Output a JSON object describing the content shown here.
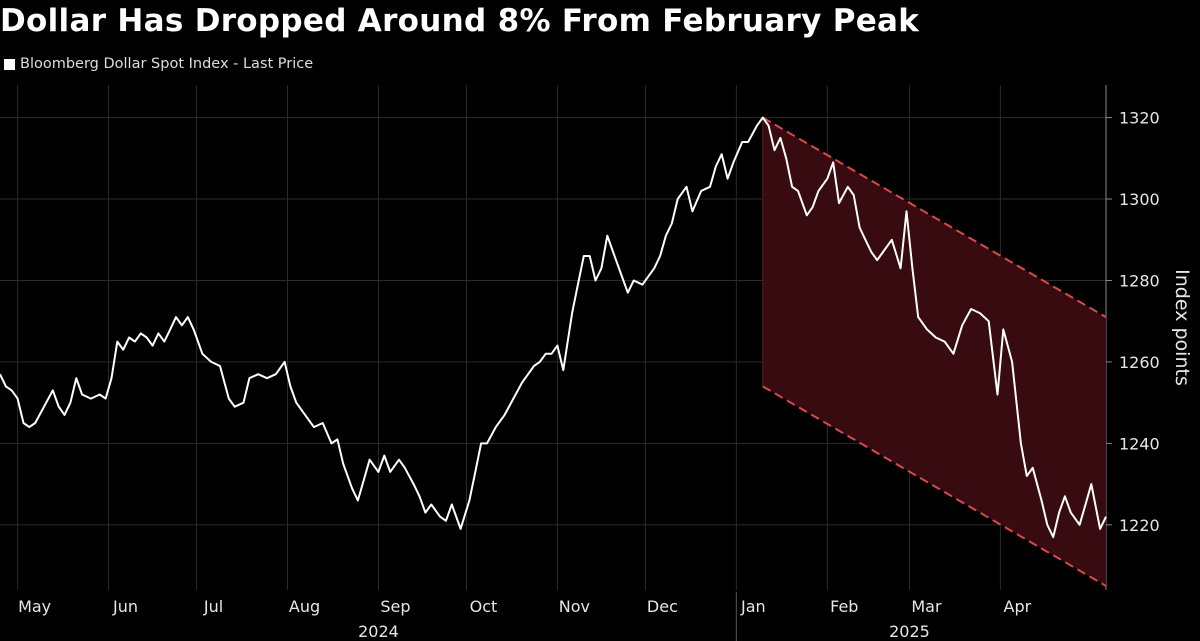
{
  "title": "Dollar Has Dropped Around 8% From February Peak",
  "legend": "Bloomberg Dollar Spot Index - Last Price",
  "chart_data": {
    "type": "line",
    "title": "Dollar Has Dropped Around 8% From February Peak",
    "ylabel": "Index points",
    "ylim": [
      1204,
      1328
    ],
    "yticks": [
      1220,
      1240,
      1260,
      1280,
      1300,
      1320
    ],
    "xlim": [
      "2024-04-25",
      "2025-05-07"
    ],
    "month_ticks": [
      {
        "date": "2024-05-01",
        "label": "May"
      },
      {
        "date": "2024-06-01",
        "label": "Jun"
      },
      {
        "date": "2024-07-01",
        "label": "Jul"
      },
      {
        "date": "2024-08-01",
        "label": "Aug"
      },
      {
        "date": "2024-09-01",
        "label": "Sep"
      },
      {
        "date": "2024-10-01",
        "label": "Oct"
      },
      {
        "date": "2024-11-01",
        "label": "Nov"
      },
      {
        "date": "2024-12-01",
        "label": "Dec"
      },
      {
        "date": "2025-01-01",
        "label": "Jan"
      },
      {
        "date": "2025-02-01",
        "label": "Feb"
      },
      {
        "date": "2025-03-01",
        "label": "Mar"
      },
      {
        "date": "2025-04-01",
        "label": "Apr"
      }
    ],
    "year_labels": [
      {
        "date": "2024-09-01",
        "label": "2024"
      },
      {
        "date": "2025-03-01",
        "label": "2025"
      }
    ],
    "year_separator": "2025-01-01",
    "grid": true,
    "legend_position": "top-left",
    "series": [
      {
        "name": "Bloomberg Dollar Spot Index - Last Price",
        "color": "#ffffff",
        "points": [
          [
            "2024-04-25",
            1257
          ],
          [
            "2024-04-27",
            1254
          ],
          [
            "2024-04-29",
            1253
          ],
          [
            "2024-05-01",
            1251
          ],
          [
            "2024-05-03",
            1245
          ],
          [
            "2024-05-05",
            1244
          ],
          [
            "2024-05-07",
            1245
          ],
          [
            "2024-05-10",
            1249
          ],
          [
            "2024-05-13",
            1253
          ],
          [
            "2024-05-15",
            1249
          ],
          [
            "2024-05-17",
            1247
          ],
          [
            "2024-05-19",
            1250
          ],
          [
            "2024-05-21",
            1256
          ],
          [
            "2024-05-23",
            1252
          ],
          [
            "2024-05-26",
            1251
          ],
          [
            "2024-05-29",
            1252
          ],
          [
            "2024-05-31",
            1251
          ],
          [
            "2024-06-02",
            1256
          ],
          [
            "2024-06-04",
            1265
          ],
          [
            "2024-06-06",
            1263
          ],
          [
            "2024-06-08",
            1266
          ],
          [
            "2024-06-10",
            1265
          ],
          [
            "2024-06-12",
            1267
          ],
          [
            "2024-06-14",
            1266
          ],
          [
            "2024-06-16",
            1264
          ],
          [
            "2024-06-18",
            1267
          ],
          [
            "2024-06-20",
            1265
          ],
          [
            "2024-06-22",
            1268
          ],
          [
            "2024-06-24",
            1271
          ],
          [
            "2024-06-26",
            1269
          ],
          [
            "2024-06-28",
            1271
          ],
          [
            "2024-06-30",
            1268
          ],
          [
            "2024-07-03",
            1262
          ],
          [
            "2024-07-06",
            1260
          ],
          [
            "2024-07-09",
            1259
          ],
          [
            "2024-07-12",
            1251
          ],
          [
            "2024-07-14",
            1249
          ],
          [
            "2024-07-17",
            1250
          ],
          [
            "2024-07-19",
            1256
          ],
          [
            "2024-07-22",
            1257
          ],
          [
            "2024-07-25",
            1256
          ],
          [
            "2024-07-28",
            1257
          ],
          [
            "2024-07-31",
            1260
          ],
          [
            "2024-08-02",
            1254
          ],
          [
            "2024-08-04",
            1250
          ],
          [
            "2024-08-07",
            1247
          ],
          [
            "2024-08-10",
            1244
          ],
          [
            "2024-08-13",
            1245
          ],
          [
            "2024-08-16",
            1240
          ],
          [
            "2024-08-18",
            1241
          ],
          [
            "2024-08-20",
            1235
          ],
          [
            "2024-08-23",
            1229
          ],
          [
            "2024-08-25",
            1226
          ],
          [
            "2024-08-27",
            1231
          ],
          [
            "2024-08-29",
            1236
          ],
          [
            "2024-09-01",
            1233
          ],
          [
            "2024-09-03",
            1237
          ],
          [
            "2024-09-05",
            1233
          ],
          [
            "2024-09-08",
            1236
          ],
          [
            "2024-09-10",
            1234
          ],
          [
            "2024-09-13",
            1230
          ],
          [
            "2024-09-15",
            1227
          ],
          [
            "2024-09-17",
            1223
          ],
          [
            "2024-09-19",
            1225
          ],
          [
            "2024-09-22",
            1222
          ],
          [
            "2024-09-24",
            1221
          ],
          [
            "2024-09-26",
            1225
          ],
          [
            "2024-09-29",
            1219
          ],
          [
            "2024-10-02",
            1226
          ],
          [
            "2024-10-04",
            1233
          ],
          [
            "2024-10-06",
            1240
          ],
          [
            "2024-10-08",
            1240
          ],
          [
            "2024-10-11",
            1244
          ],
          [
            "2024-10-14",
            1247
          ],
          [
            "2024-10-17",
            1251
          ],
          [
            "2024-10-20",
            1255
          ],
          [
            "2024-10-22",
            1257
          ],
          [
            "2024-10-24",
            1259
          ],
          [
            "2024-10-26",
            1260
          ],
          [
            "2024-10-28",
            1262
          ],
          [
            "2024-10-30",
            1262
          ],
          [
            "2024-11-01",
            1264
          ],
          [
            "2024-11-03",
            1258
          ],
          [
            "2024-11-06",
            1272
          ],
          [
            "2024-11-08",
            1279
          ],
          [
            "2024-11-10",
            1286
          ],
          [
            "2024-11-12",
            1286
          ],
          [
            "2024-11-14",
            1280
          ],
          [
            "2024-11-16",
            1283
          ],
          [
            "2024-11-18",
            1291
          ],
          [
            "2024-11-20",
            1287
          ],
          [
            "2024-11-23",
            1281
          ],
          [
            "2024-11-25",
            1277
          ],
          [
            "2024-11-27",
            1280
          ],
          [
            "2024-11-30",
            1279
          ],
          [
            "2024-12-02",
            1281
          ],
          [
            "2024-12-04",
            1283
          ],
          [
            "2024-12-06",
            1286
          ],
          [
            "2024-12-08",
            1291
          ],
          [
            "2024-12-10",
            1294
          ],
          [
            "2024-12-12",
            1300
          ],
          [
            "2024-12-15",
            1303
          ],
          [
            "2024-12-17",
            1297
          ],
          [
            "2024-12-20",
            1302
          ],
          [
            "2024-12-23",
            1303
          ],
          [
            "2024-12-25",
            1308
          ],
          [
            "2024-12-27",
            1311
          ],
          [
            "2024-12-29",
            1305
          ],
          [
            "2024-12-31",
            1309
          ],
          [
            "2025-01-03",
            1314
          ],
          [
            "2025-01-05",
            1314
          ],
          [
            "2025-01-08",
            1318
          ],
          [
            "2025-01-10",
            1320
          ],
          [
            "2025-01-12",
            1318
          ],
          [
            "2025-01-14",
            1312
          ],
          [
            "2025-01-16",
            1315
          ],
          [
            "2025-01-18",
            1310
          ],
          [
            "2025-01-20",
            1303
          ],
          [
            "2025-01-22",
            1302
          ],
          [
            "2025-01-25",
            1296
          ],
          [
            "2025-01-27",
            1298
          ],
          [
            "2025-01-29",
            1302
          ],
          [
            "2025-02-01",
            1305
          ],
          [
            "2025-02-03",
            1309
          ],
          [
            "2025-02-05",
            1299
          ],
          [
            "2025-02-08",
            1303
          ],
          [
            "2025-02-10",
            1301
          ],
          [
            "2025-02-12",
            1293
          ],
          [
            "2025-02-14",
            1290
          ],
          [
            "2025-02-16",
            1287
          ],
          [
            "2025-02-18",
            1285
          ],
          [
            "2025-02-20",
            1287
          ],
          [
            "2025-02-23",
            1290
          ],
          [
            "2025-02-26",
            1283
          ],
          [
            "2025-02-28",
            1297
          ],
          [
            "2025-03-02",
            1283
          ],
          [
            "2025-03-04",
            1271
          ],
          [
            "2025-03-07",
            1268
          ],
          [
            "2025-03-10",
            1266
          ],
          [
            "2025-03-13",
            1265
          ],
          [
            "2025-03-16",
            1262
          ],
          [
            "2025-03-19",
            1269
          ],
          [
            "2025-03-22",
            1273
          ],
          [
            "2025-03-25",
            1272
          ],
          [
            "2025-03-28",
            1270
          ],
          [
            "2025-03-31",
            1252
          ],
          [
            "2025-04-02",
            1268
          ],
          [
            "2025-04-05",
            1260
          ],
          [
            "2025-04-08",
            1240
          ],
          [
            "2025-04-10",
            1232
          ],
          [
            "2025-04-12",
            1234
          ],
          [
            "2025-04-15",
            1226
          ],
          [
            "2025-04-17",
            1220
          ],
          [
            "2025-04-19",
            1217
          ],
          [
            "2025-04-21",
            1223
          ],
          [
            "2025-04-23",
            1227
          ],
          [
            "2025-04-25",
            1223
          ],
          [
            "2025-04-28",
            1220
          ],
          [
            "2025-04-30",
            1225
          ],
          [
            "2025-05-02",
            1230
          ],
          [
            "2025-05-05",
            1219
          ],
          [
            "2025-05-07",
            1222
          ]
        ]
      }
    ],
    "annotations": [
      {
        "type": "channel",
        "from": "2025-01-10",
        "to": "2025-05-07",
        "upper": [
          1320,
          1271
        ],
        "lower": [
          1254,
          1205
        ],
        "line_color": "#d94a4a",
        "fill_color": "#3a0c10"
      }
    ]
  }
}
